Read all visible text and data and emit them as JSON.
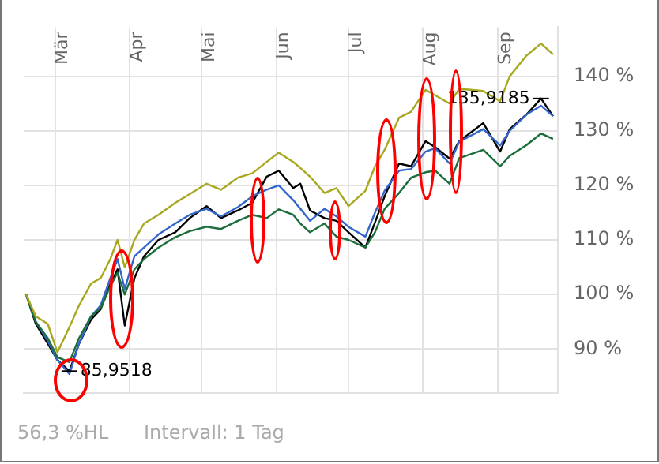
{
  "chart_data": {
    "type": "line",
    "x": [
      "--02-17",
      "--02-21",
      "--02-26",
      "--03-02",
      "--03-07",
      "--03-11",
      "--03-16",
      "--03-20",
      "--03-24",
      "--03-27",
      "--03-30",
      "--04-03",
      "--04-07",
      "--04-13",
      "--04-20",
      "--04-26",
      "--05-03",
      "--05-09",
      "--05-16",
      "--05-22",
      "--05-28",
      "--06-02",
      "--06-08",
      "--06-11",
      "--06-15",
      "--06-21",
      "--06-26",
      "--07-01",
      "--07-08",
      "--07-12",
      "--07-16",
      "--07-22",
      "--07-27",
      "--08-02",
      "--08-06",
      "--08-12",
      "--08-16",
      "--08-26",
      "--09-02",
      "--09-06",
      "--09-13",
      "--09-19",
      "--09-24"
    ],
    "series": [
      {
        "color": "#a8a820",
        "values": [
          100,
          96,
          94.6,
          89.4,
          94,
          98,
          102,
          103,
          106.5,
          110,
          105,
          110,
          113,
          114.6,
          116.8,
          118.4,
          120.3,
          119.2,
          121.4,
          122.2,
          124.3,
          126,
          124.3,
          123.2,
          121.6,
          118.6,
          119.5,
          116.2,
          119,
          123.5,
          126.5,
          132.4,
          133.5,
          137.5,
          136.5,
          135,
          137.7,
          137.3,
          135.4,
          140,
          143.8,
          146,
          144
        ]
      },
      {
        "color": "#1a6e3c",
        "values": [
          100,
          95,
          92,
          88.5,
          87.6,
          92,
          96,
          97.5,
          101.5,
          104,
          100,
          104.6,
          106.5,
          108.6,
          110.5,
          111.6,
          112.4,
          112,
          113.5,
          114.6,
          114,
          115.6,
          114.6,
          113,
          111.4,
          113,
          110.6,
          110,
          108.6,
          111.4,
          115.7,
          118.6,
          121.4,
          122.4,
          122.7,
          120.3,
          125,
          126.5,
          123.5,
          125.4,
          127.4,
          129.5,
          128.5
        ]
      },
      {
        "color": "#3366cc",
        "values": [
          100,
          95,
          91.5,
          88,
          85.4,
          91,
          96,
          98,
          103,
          106.5,
          101,
          107,
          108.6,
          111,
          113,
          114.6,
          115.7,
          114.3,
          116,
          118,
          119.2,
          120,
          117.3,
          115.7,
          113.5,
          115.7,
          114.3,
          112.4,
          110.6,
          115,
          119,
          122.7,
          123,
          126.2,
          126.8,
          124,
          128,
          130.3,
          127.3,
          130,
          133,
          134.6,
          132.7
        ]
      },
      {
        "color": "#000000",
        "values": [
          100,
          94.6,
          91,
          88,
          85.9518,
          91,
          95.4,
          97.3,
          101.9,
          104.6,
          94.3,
          103,
          107,
          110,
          111.4,
          114,
          116.2,
          114,
          115.4,
          116.8,
          121.6,
          122.7,
          119.5,
          120.3,
          115.4,
          114,
          113.5,
          111.4,
          108.6,
          113.2,
          118,
          124,
          123.5,
          128.1,
          127,
          124.9,
          128.1,
          131.4,
          126.2,
          130.3,
          133,
          135.9185,
          132.7
        ]
      }
    ],
    "xlim": [
      "--02-16",
      "--09-26"
    ],
    "xticks": [
      {
        "value": "--03-01",
        "label": "Mär"
      },
      {
        "value": "--04-01",
        "label": "Apr"
      },
      {
        "value": "--05-01",
        "label": "Mai"
      },
      {
        "value": "--06-01",
        "label": "Jun"
      },
      {
        "value": "--07-01",
        "label": "Jul"
      },
      {
        "value": "--08-01",
        "label": "Aug"
      },
      {
        "value": "--09-01",
        "label": "Sep"
      }
    ],
    "ylim": [
      82,
      149
    ],
    "yticks": [
      {
        "value": 90,
        "label": "90 %"
      },
      {
        "value": 100,
        "label": "100 %"
      },
      {
        "value": 110,
        "label": "110 %"
      },
      {
        "value": 120,
        "label": "120 %"
      },
      {
        "value": 130,
        "label": "130 %"
      },
      {
        "value": 140,
        "label": "140 %"
      }
    ],
    "grid": true,
    "legend": false,
    "marker": "none",
    "line_style": "solid",
    "annotations": [
      {
        "text": "85,9518",
        "x": "--03-07",
        "y": 85.9518
      },
      {
        "text": "135,9185",
        "x": "--09-19",
        "y": 135.9185
      },
      "56,3 %HL",
      "Intervall: 1 Tag"
    ]
  }
}
